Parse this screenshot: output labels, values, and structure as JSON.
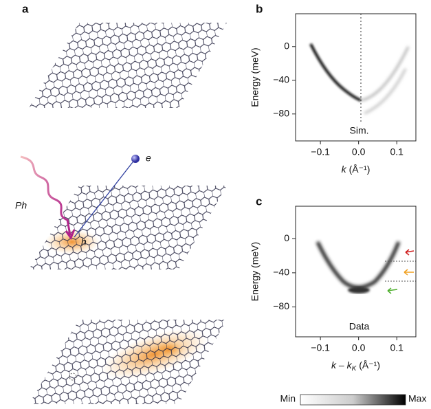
{
  "panel_a": {
    "label": "a",
    "photon": "Ph",
    "electron": "e",
    "hole": "h"
  },
  "chart_data": [
    {
      "type": "band-map",
      "panel_label": "b",
      "ylabel": "Energy (meV)",
      "xlabel": "k",
      "xlabel_units": "(Å⁻¹)",
      "annotation": "Sim.",
      "xlim": [
        -0.165,
        0.15
      ],
      "ylim": [
        -112,
        39
      ],
      "xticks": [
        {
          "value": -0.1,
          "label": "−0.1"
        },
        {
          "value": 0,
          "label": "0.0"
        },
        {
          "value": 0.1,
          "label": "0.1"
        }
      ],
      "yticks": [
        0,
        {
          "value": -40,
          "label": "−40"
        },
        {
          "value": -80,
          "label": "−80"
        }
      ]
    },
    {
      "type": "band-map",
      "panel_label": "c",
      "ylabel": "Energy (meV)",
      "xlabel": "k – k",
      "xlabel_sub": "K",
      "xlabel_units": "(Å⁻¹)",
      "annotation": "Data",
      "xlim": [
        -0.165,
        0.15
      ],
      "ylim": [
        -115,
        38
      ],
      "xticks": [
        {
          "value": -0.1,
          "label": "−0.1"
        },
        {
          "value": 0,
          "label": "0.0"
        },
        {
          "value": 0.1,
          "label": "0.1"
        }
      ],
      "yticks": [
        0,
        {
          "value": -40,
          "label": "−40"
        },
        {
          "value": -80,
          "label": "−80"
        }
      ]
    }
  ],
  "colorbar": {
    "min": "Min",
    "max": "Max"
  }
}
